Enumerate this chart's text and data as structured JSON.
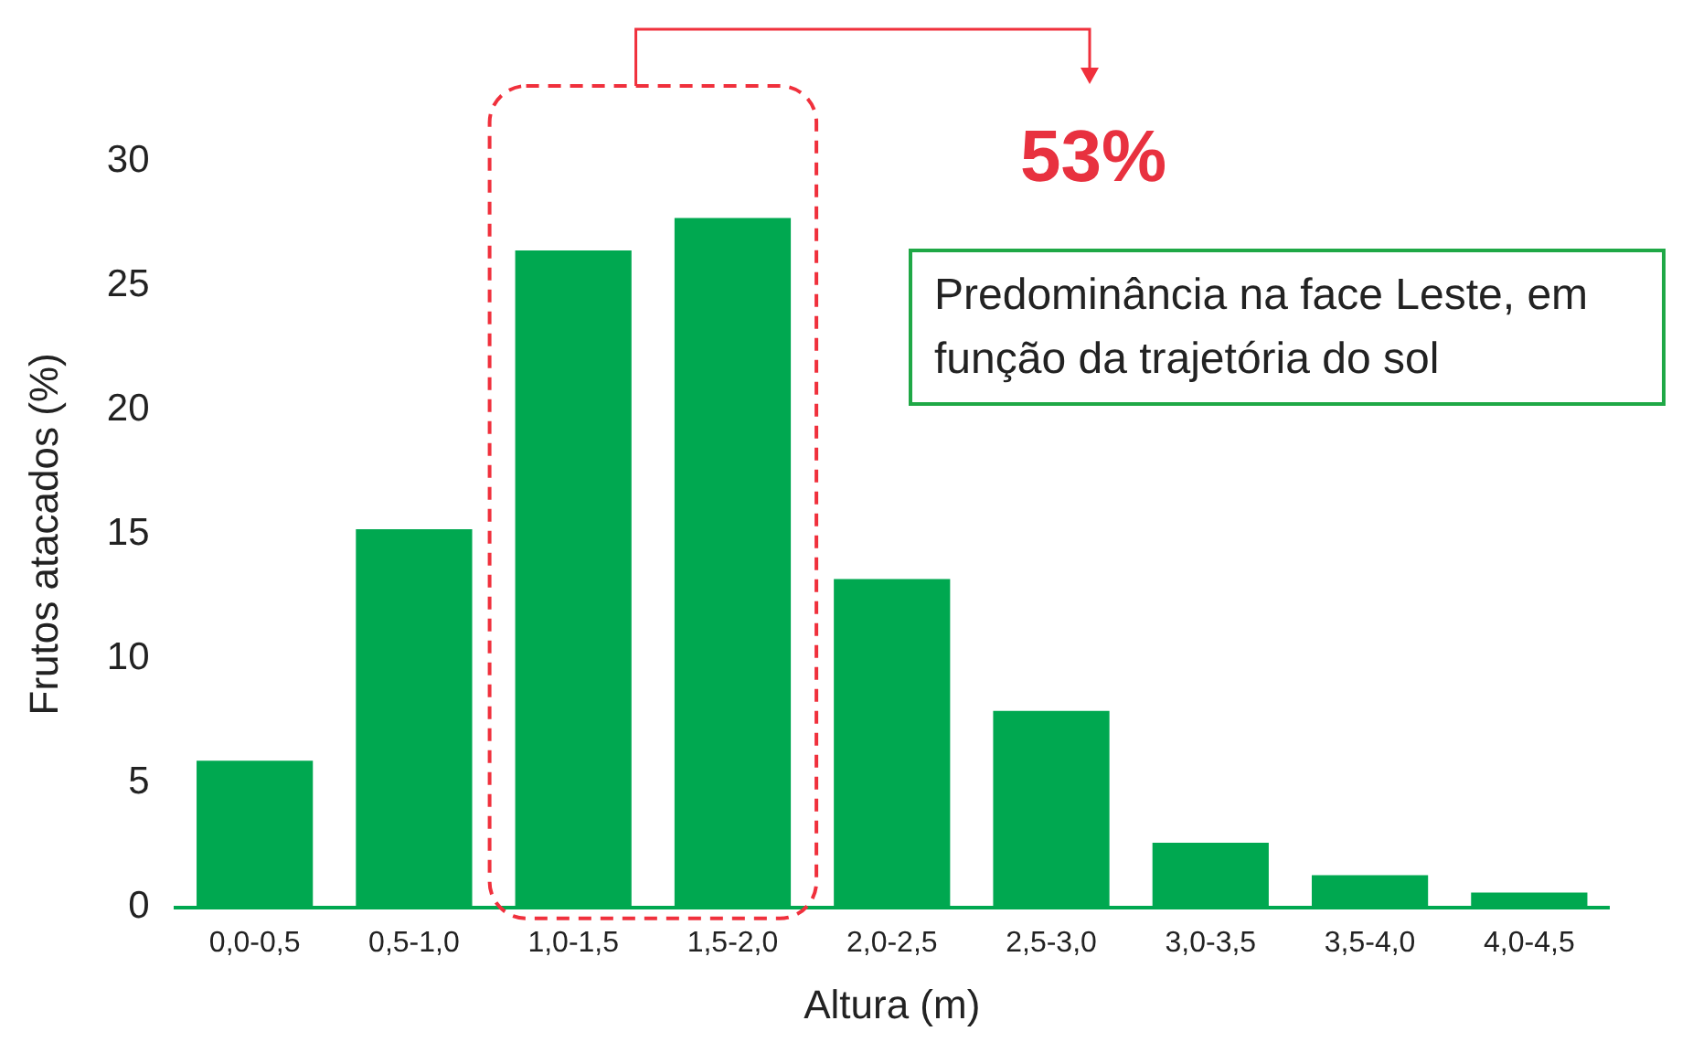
{
  "chart_data": {
    "type": "bar",
    "xlabel": "Altura (m)",
    "ylabel": "Frutos atacados (%)",
    "categories": [
      "0,0-0,5",
      "0,5-1,0",
      "1,0-1,5",
      "1,5-2,0",
      "2,0-2,5",
      "2,5-3,0",
      "3,0-3,5",
      "3,5-4,0",
      "4,0-4,5"
    ],
    "values": [
      5.9,
      15.2,
      26.4,
      27.7,
      13.2,
      7.9,
      2.6,
      1.3,
      0.6
    ],
    "color": "#00a850",
    "ylim": [
      0,
      30
    ],
    "yticks": [
      0,
      5,
      10,
      15,
      20,
      25,
      30
    ],
    "annotations": [
      "53%",
      "Predominância na face Leste, em função da trajetória do sol"
    ]
  }
}
